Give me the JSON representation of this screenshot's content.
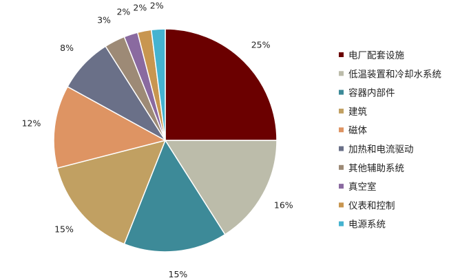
{
  "chart_data": {
    "type": "pie",
    "title": "",
    "start_angle_deg": 0,
    "direction": "clockwise",
    "legend_position": "right",
    "slices": [
      {
        "label": "电厂配套设施",
        "value": 25,
        "value_label": "25%",
        "color": "#6b0000"
      },
      {
        "label": "低温装置和冷却水系统",
        "value": 16,
        "value_label": "16%",
        "color": "#bcbcaa"
      },
      {
        "label": "容器内部件",
        "value": 15,
        "value_label": "15%",
        "color": "#3d8a98"
      },
      {
        "label": "建筑",
        "value": 15,
        "value_label": "15%",
        "color": "#c1a062"
      },
      {
        "label": "磁体",
        "value": 12,
        "value_label": "12%",
        "color": "#de9463"
      },
      {
        "label": "加热和电流驱动",
        "value": 8,
        "value_label": "8%",
        "color": "#6a7088"
      },
      {
        "label": "其他辅助系统",
        "value": 3,
        "value_label": "3%",
        "color": "#9d8a76"
      },
      {
        "label": "真空室",
        "value": 2,
        "value_label": "2%",
        "color": "#8a6aa0"
      },
      {
        "label": "仪表和控制",
        "value": 2,
        "value_label": "2%",
        "color": "#c89650"
      },
      {
        "label": "电源系统",
        "value": 2,
        "value_label": "2%",
        "color": "#45b3d0"
      }
    ]
  }
}
